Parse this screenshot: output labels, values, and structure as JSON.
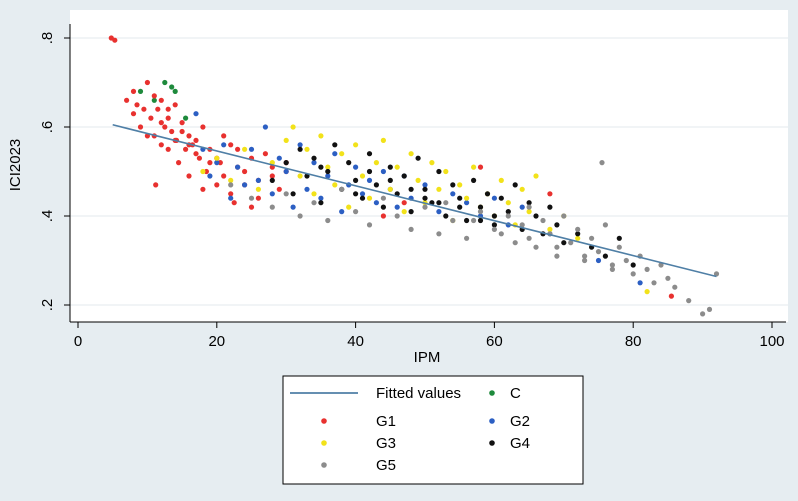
{
  "chart_data": {
    "type": "scatter",
    "xlabel": "IPM",
    "ylabel": "ICI2023",
    "xlim": [
      0,
      100
    ],
    "ylim": [
      0.18,
      0.82
    ],
    "x_ticks": [
      "0",
      "20",
      "40",
      "60",
      "80",
      "100"
    ],
    "y_ticks": [
      ".2",
      ".4",
      ".6",
      ".8"
    ],
    "grid": true,
    "legend_position": "bottom",
    "fitted_line": {
      "name": "Fitted values",
      "x": [
        5,
        92
      ],
      "y": [
        0.605,
        0.264
      ],
      "color": "#4f7fa6"
    },
    "series": [
      {
        "name": "C",
        "color": "#1e8a3c",
        "x": [
          9,
          11,
          12.5,
          13.5,
          14,
          15.5
        ],
        "y": [
          0.68,
          0.66,
          0.7,
          0.69,
          0.68,
          0.62
        ]
      },
      {
        "name": "G1",
        "color": "#e8312f",
        "x": [
          4.8,
          5.3,
          7,
          8,
          8.5,
          9,
          9.5,
          10,
          10.5,
          11,
          11.2,
          11.5,
          12,
          12,
          12.5,
          13,
          13,
          13.5,
          14,
          14.2,
          14.5,
          15,
          15.5,
          16,
          16,
          16.5,
          17,
          17.5,
          18,
          18.5,
          19,
          20,
          20.5,
          21,
          22,
          22.5,
          23,
          24,
          25,
          26,
          27,
          28,
          29,
          30,
          8,
          10,
          11,
          12,
          13,
          14,
          15,
          16,
          17,
          18,
          19,
          20,
          21,
          22,
          23,
          24,
          25,
          26,
          28,
          30,
          44,
          47,
          58,
          68,
          85.5
        ],
        "y": [
          0.8,
          0.795,
          0.66,
          0.68,
          0.65,
          0.6,
          0.64,
          0.7,
          0.62,
          0.58,
          0.47,
          0.64,
          0.66,
          0.56,
          0.6,
          0.62,
          0.55,
          0.59,
          0.65,
          0.57,
          0.52,
          0.61,
          0.55,
          0.58,
          0.49,
          0.56,
          0.57,
          0.53,
          0.46,
          0.5,
          0.55,
          0.47,
          0.52,
          0.58,
          0.45,
          0.43,
          0.55,
          0.5,
          0.42,
          0.48,
          0.54,
          0.51,
          0.46,
          0.5,
          0.63,
          0.58,
          0.67,
          0.61,
          0.64,
          0.57,
          0.59,
          0.56,
          0.54,
          0.6,
          0.52,
          0.53,
          0.49,
          0.56,
          0.51,
          0.47,
          0.53,
          0.44,
          0.49,
          0.52,
          0.4,
          0.43,
          0.51,
          0.45,
          0.22
        ]
      },
      {
        "name": "G2",
        "color": "#2c5fc3",
        "x": [
          17,
          18,
          19,
          20,
          21,
          22,
          23,
          24,
          25,
          26,
          27,
          28,
          29,
          30,
          31,
          32,
          33,
          34,
          35,
          36,
          37,
          38,
          39,
          40,
          41,
          42,
          43,
          44,
          45,
          46,
          47,
          48,
          50,
          52,
          54,
          56,
          58,
          60,
          62,
          64,
          68,
          75,
          81
        ],
        "y": [
          0.63,
          0.55,
          0.49,
          0.52,
          0.56,
          0.44,
          0.51,
          0.47,
          0.55,
          0.48,
          0.6,
          0.45,
          0.53,
          0.5,
          0.42,
          0.56,
          0.46,
          0.52,
          0.44,
          0.49,
          0.54,
          0.41,
          0.47,
          0.51,
          0.45,
          0.48,
          0.43,
          0.5,
          0.46,
          0.42,
          0.49,
          0.44,
          0.47,
          0.41,
          0.45,
          0.43,
          0.4,
          0.44,
          0.38,
          0.42,
          0.36,
          0.3,
          0.25
        ]
      },
      {
        "name": "G3",
        "color": "#f2e21a",
        "x": [
          18,
          20,
          22,
          24,
          26,
          28,
          30,
          31,
          32,
          33,
          34,
          35,
          36,
          37,
          38,
          39,
          40,
          41,
          42,
          43,
          44,
          45,
          46,
          47,
          48,
          49,
          50,
          51,
          52,
          53,
          54,
          55,
          56,
          57,
          58,
          59,
          60,
          61,
          62,
          63,
          64,
          65,
          66,
          68,
          70,
          72,
          82
        ],
        "y": [
          0.5,
          0.53,
          0.48,
          0.55,
          0.46,
          0.52,
          0.57,
          0.6,
          0.49,
          0.55,
          0.45,
          0.58,
          0.51,
          0.47,
          0.54,
          0.42,
          0.56,
          0.49,
          0.44,
          0.52,
          0.57,
          0.46,
          0.51,
          0.41,
          0.54,
          0.48,
          0.43,
          0.52,
          0.46,
          0.5,
          0.39,
          0.47,
          0.44,
          0.51,
          0.42,
          0.45,
          0.4,
          0.48,
          0.43,
          0.38,
          0.46,
          0.41,
          0.49,
          0.37,
          0.4,
          0.35,
          0.23
        ]
      },
      {
        "name": "G4",
        "color": "#111111",
        "x": [
          28,
          30,
          31,
          32,
          33,
          34,
          35,
          36,
          37,
          38,
          39,
          40,
          41,
          42,
          43,
          44,
          45,
          46,
          47,
          48,
          49,
          50,
          51,
          52,
          53,
          54,
          55,
          56,
          57,
          58,
          59,
          60,
          61,
          62,
          63,
          64,
          65,
          66,
          67,
          68,
          69,
          70,
          72,
          74,
          76,
          78,
          80,
          35,
          40,
          45,
          50,
          55,
          60,
          42,
          48,
          52,
          58
        ],
        "y": [
          0.48,
          0.52,
          0.45,
          0.55,
          0.49,
          0.53,
          0.43,
          0.5,
          0.56,
          0.46,
          0.52,
          0.48,
          0.44,
          0.54,
          0.47,
          0.42,
          0.51,
          0.45,
          0.49,
          0.41,
          0.53,
          0.46,
          0.43,
          0.5,
          0.4,
          0.47,
          0.44,
          0.39,
          0.48,
          0.42,
          0.45,
          0.38,
          0.44,
          0.41,
          0.47,
          0.37,
          0.43,
          0.4,
          0.36,
          0.42,
          0.38,
          0.34,
          0.36,
          0.33,
          0.31,
          0.35,
          0.29,
          0.51,
          0.45,
          0.48,
          0.44,
          0.42,
          0.4,
          0.5,
          0.46,
          0.43,
          0.39
        ]
      },
      {
        "name": "G5",
        "color": "#8c8c8c",
        "x": [
          22,
          25,
          28,
          30,
          32,
          34,
          36,
          38,
          40,
          42,
          44,
          46,
          48,
          50,
          52,
          54,
          56,
          58,
          60,
          62,
          63,
          64,
          65,
          66,
          67,
          68,
          69,
          70,
          71,
          72,
          73,
          74,
          75,
          76,
          77,
          78,
          79,
          80,
          81,
          82,
          83,
          84,
          85,
          86,
          88,
          90,
          91,
          92,
          75.5,
          53,
          57,
          61,
          65,
          69,
          73,
          77
        ],
        "y": [
          0.47,
          0.44,
          0.42,
          0.45,
          0.4,
          0.43,
          0.39,
          0.46,
          0.41,
          0.38,
          0.44,
          0.4,
          0.37,
          0.42,
          0.36,
          0.39,
          0.35,
          0.41,
          0.37,
          0.4,
          0.34,
          0.38,
          0.42,
          0.33,
          0.39,
          0.36,
          0.31,
          0.4,
          0.34,
          0.37,
          0.3,
          0.35,
          0.32,
          0.38,
          0.28,
          0.33,
          0.3,
          0.27,
          0.31,
          0.28,
          0.25,
          0.29,
          0.26,
          0.24,
          0.21,
          0.18,
          0.19,
          0.27,
          0.52,
          0.43,
          0.39,
          0.36,
          0.35,
          0.33,
          0.31,
          0.29
        ]
      }
    ],
    "legend": [
      {
        "label": "Fitted values",
        "kind": "line",
        "color": "#4f7fa6"
      },
      {
        "label": "C",
        "kind": "dot",
        "color": "#1e8a3c"
      },
      {
        "label": "G1",
        "kind": "dot",
        "color": "#e8312f"
      },
      {
        "label": "G2",
        "kind": "dot",
        "color": "#2c5fc3"
      },
      {
        "label": "G3",
        "kind": "dot",
        "color": "#f2e21a"
      },
      {
        "label": "G4",
        "kind": "dot",
        "color": "#111111"
      },
      {
        "label": "G5",
        "kind": "dot",
        "color": "#8c8c8c"
      }
    ],
    "colors": {
      "outer_background": "#e6edf1",
      "plot_background": "#ffffff",
      "grid": "#e3eaee",
      "axis": "#000000"
    }
  }
}
